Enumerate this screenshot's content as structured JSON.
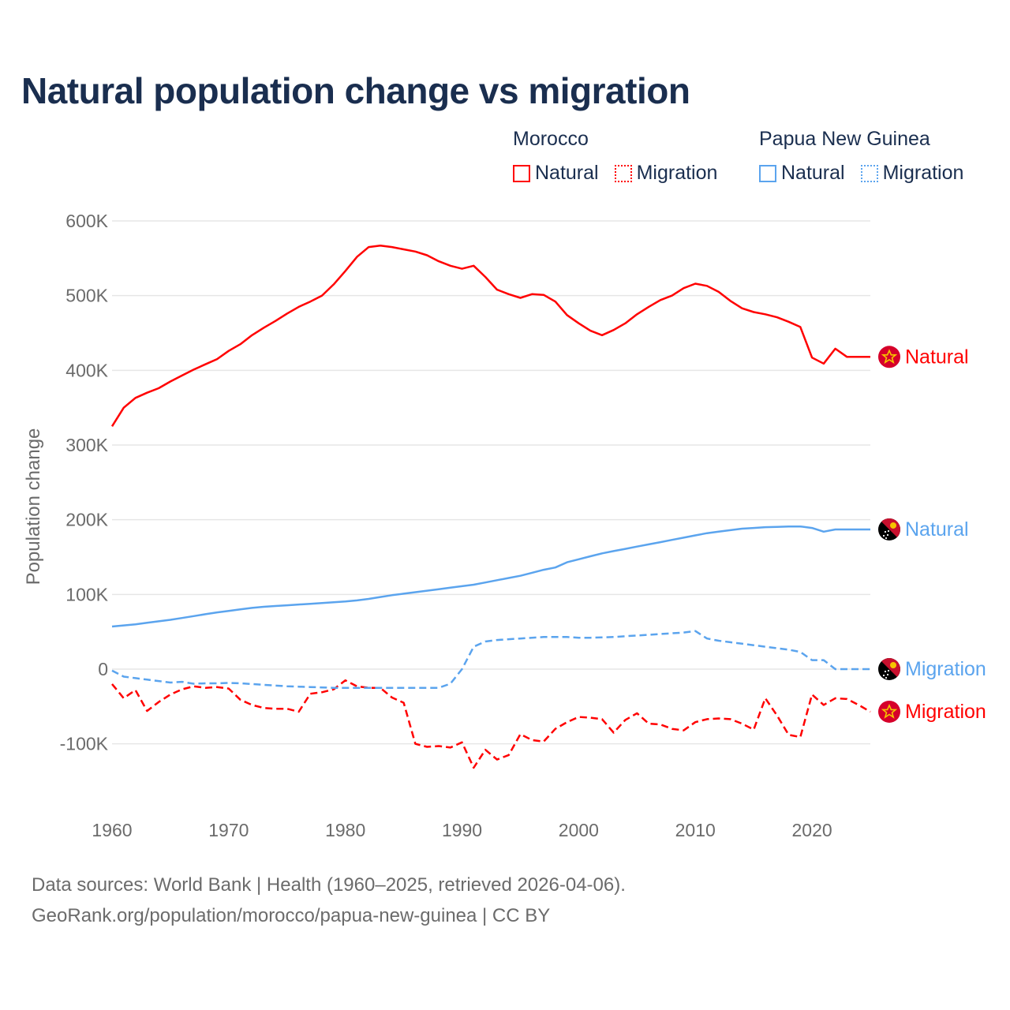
{
  "chart_data": {
    "type": "line",
    "title": "Natural population change vs migration",
    "xlabel": "",
    "ylabel": "Population change",
    "xlim": [
      1960,
      2025
    ],
    "ylim": [
      -150000,
      600000
    ],
    "grid": true,
    "legend_position": "top-right",
    "x_ticks": [
      1960,
      1970,
      1980,
      1990,
      2000,
      2010,
      2020
    ],
    "x_tick_labels": [
      "1960",
      "1970",
      "1980",
      "1990",
      "2000",
      "2010",
      "2020"
    ],
    "y_ticks": [
      600000,
      500000,
      400000,
      300000,
      200000,
      100000,
      0,
      -100000
    ],
    "y_tick_labels": [
      "600K",
      "500K",
      "400K",
      "300K",
      "200K",
      "100K",
      "0",
      "-100K"
    ],
    "x_start": 1960,
    "legend_groups": [
      {
        "name": "Morocco",
        "items": [
          "Natural",
          "Migration"
        ]
      },
      {
        "name": "Papua New Guinea",
        "items": [
          "Natural",
          "Migration"
        ]
      }
    ],
    "series": [
      {
        "country": "Morocco",
        "name": "Natural",
        "color": "#ff0000",
        "dash": false,
        "end_label": "Natural",
        "flag": "morocco-flag",
        "values_thousands": [
          325,
          350,
          363,
          370,
          376,
          385,
          393,
          401,
          408,
          415,
          426,
          435,
          447,
          457,
          466,
          476,
          485,
          492,
          500,
          515,
          533,
          552,
          565,
          567,
          565,
          562,
          559,
          554,
          546,
          540,
          536,
          540,
          525,
          508,
          502,
          497,
          502,
          501,
          492,
          474,
          463,
          453,
          447,
          454,
          463,
          475,
          485,
          494,
          500,
          510,
          516,
          513,
          505,
          493,
          483,
          478,
          475,
          471,
          465,
          458,
          417,
          409,
          429,
          418,
          418,
          418
        ]
      },
      {
        "country": "Morocco",
        "name": "Migration",
        "color": "#ff0000",
        "dash": true,
        "end_label": "Migration",
        "flag": "morocco-flag",
        "values_thousands": [
          -20,
          -39,
          -28,
          -56,
          -44,
          -34,
          -27,
          -23,
          -25,
          -24,
          -26,
          -41,
          -48,
          -52,
          -53,
          -53,
          -57,
          -33,
          -31,
          -27,
          -15,
          -23,
          -25,
          -25,
          -38,
          -45,
          -100,
          -104,
          -103,
          -105,
          -98,
          -132,
          -108,
          -121,
          -115,
          -87,
          -95,
          -97,
          -80,
          -71,
          -64,
          -65,
          -67,
          -85,
          -68,
          -59,
          -73,
          -74,
          -80,
          -82,
          -71,
          -67,
          -66,
          -67,
          -73,
          -81,
          -39,
          -62,
          -88,
          -91,
          -34,
          -48,
          -39,
          -40,
          -48,
          -57
        ]
      },
      {
        "country": "Papua New Guinea",
        "name": "Natural",
        "color": "#5ba4ee",
        "dash": false,
        "end_label": "Natural",
        "flag": "png-flag",
        "values_thousands": [
          57,
          58.5,
          60,
          62,
          64,
          66,
          68.5,
          71,
          73.5,
          76,
          78,
          80,
          82,
          83.5,
          84.5,
          85.5,
          86.5,
          87.5,
          88.5,
          89.5,
          90.5,
          92,
          94,
          96.5,
          99,
          101,
          103,
          105,
          107,
          109,
          111,
          113,
          116,
          119,
          122,
          125,
          129,
          133,
          136,
          143,
          147,
          151,
          155,
          158,
          161,
          164,
          167,
          170,
          173,
          176,
          179,
          182,
          184,
          186,
          188,
          189,
          190,
          190.5,
          191,
          191,
          189,
          184,
          187,
          187,
          187,
          187
        ]
      },
      {
        "country": "Papua New Guinea",
        "name": "Migration",
        "color": "#5ba4ee",
        "dash": true,
        "end_label": "Migration",
        "flag": "png-flag",
        "values_thousands": [
          -2,
          -10,
          -12,
          -14,
          -16,
          -18,
          -17,
          -19.5,
          -19,
          -19,
          -18.5,
          -19,
          -20,
          -21,
          -22,
          -23,
          -23.5,
          -24,
          -24.5,
          -25,
          -25,
          -25,
          -25,
          -25,
          -25,
          -25,
          -25,
          -25,
          -25,
          -19.5,
          0,
          30,
          37,
          39,
          40,
          41,
          42,
          43,
          43,
          43,
          42,
          42,
          42.5,
          43,
          44,
          45,
          46,
          47,
          48,
          49,
          51,
          41,
          38,
          36,
          34,
          32,
          30,
          28,
          26,
          23,
          12,
          12,
          0,
          0,
          0,
          0
        ]
      }
    ]
  },
  "footer": {
    "line1": "Data sources: World Bank | Health (1960–2025, retrieved 2026-04-06).",
    "line2": "GeoRank.org/population/morocco/papua-new-guinea | CC BY"
  }
}
